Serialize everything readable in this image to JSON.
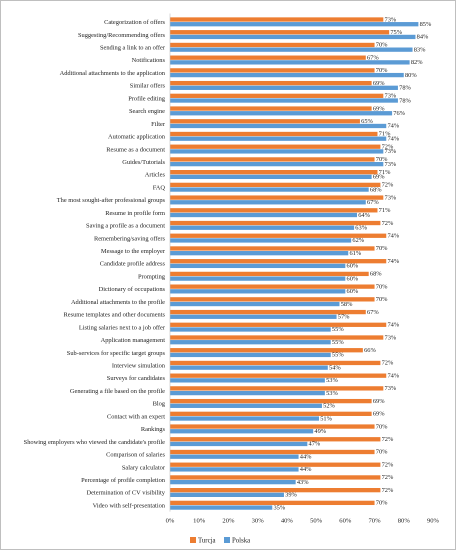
{
  "colors": {
    "turcja": "#ED7D31",
    "polska": "#5B9BD5"
  },
  "chart_data": {
    "type": "bar",
    "orientation": "horizontal",
    "title": "",
    "xlabel": "",
    "ylabel": "",
    "xlim": [
      0,
      90
    ],
    "x_ticks": [
      "0%",
      "10%",
      "20%",
      "30%",
      "40%",
      "50%",
      "60%",
      "70%",
      "80%",
      "90%"
    ],
    "grid": false,
    "legend_position": "bottom",
    "categories": [
      "Categorization of offers",
      "Suggesting/Recommending offers",
      "Sending a link to an offer",
      "Notifications",
      "Additional attachments to the application",
      "Similar offers",
      "Profile editing",
      "Search engine",
      "Filter",
      "Automatic application",
      "Resume as a document",
      "Guides/Tutorials",
      "Articles",
      "FAQ",
      "The most sought-after professional groups",
      "Resume in profile form",
      "Saving a profile as a document",
      "Remembering/saving offers",
      "Message to the employer",
      "Candidate profile address",
      "Prompting",
      "Dictionary of occupations",
      "Additional attachments to the profile",
      "Resume templates and other documents",
      "Listing salaries next to a job offer",
      "Application management",
      "Sub-services for specific target groups",
      "Interview simulation",
      "Surveys for candidates",
      "Generating a file based on the profile",
      "Blog",
      "Contact with an expert",
      "Rankings",
      "Showing employers who viewed the candidate's profile",
      "Comparison of salaries",
      "Salary calculator",
      "Percentage of profile completion",
      "Determination of CV visibility",
      "Video with self-presentation"
    ],
    "series": [
      {
        "name": "Turcja",
        "color": "#ED7D31",
        "values": [
          73,
          75,
          70,
          67,
          70,
          69,
          73,
          69,
          65,
          71,
          72,
          70,
          71,
          72,
          73,
          71,
          72,
          74,
          70,
          74,
          68,
          70,
          70,
          67,
          74,
          73,
          66,
          72,
          74,
          73,
          69,
          69,
          70,
          72,
          70,
          72,
          72,
          72,
          70
        ],
        "labels": [
          "73%",
          "75%",
          "70%",
          "67%",
          "70%",
          "69%",
          "73%",
          "69%",
          "65%",
          "71%",
          "72%",
          "70%",
          "71%",
          "72%",
          "73%",
          "71%",
          "72%",
          "74%",
          "70%",
          "74%",
          "68%",
          "70%",
          "70%",
          "67%",
          "74%",
          "73%",
          "66%",
          "72%",
          "74%",
          "73%",
          "69%",
          "69%",
          "70%",
          "72%",
          "70%",
          "72%",
          "72%",
          "72%",
          "70%"
        ]
      },
      {
        "name": "Polska",
        "color": "#5B9BD5",
        "values": [
          85,
          84,
          83,
          82,
          80,
          78,
          78,
          76,
          74,
          74,
          73,
          73,
          69,
          68,
          67,
          64,
          63,
          62,
          61,
          60,
          60,
          60,
          58,
          57,
          55,
          55,
          55,
          54,
          53,
          53,
          52,
          51,
          49,
          47,
          44,
          44,
          43,
          39,
          35
        ],
        "labels": [
          "85%",
          "84%",
          "83%",
          "82%",
          "80%",
          "78%",
          "78%",
          "76%",
          "74%",
          "74%",
          "73%",
          "73%",
          "69%",
          "68%",
          "67%",
          "64%",
          "63%",
          "62%",
          "61%",
          "60%",
          "60%",
          "60%",
          "58%",
          "57%",
          "55%",
          "55%",
          "55%",
          "54%",
          "53%",
          "53%",
          "52%",
          "51%",
          "49%",
          "47%",
          "44%",
          "44%",
          "43%",
          "39%",
          "35%"
        ]
      }
    ]
  }
}
